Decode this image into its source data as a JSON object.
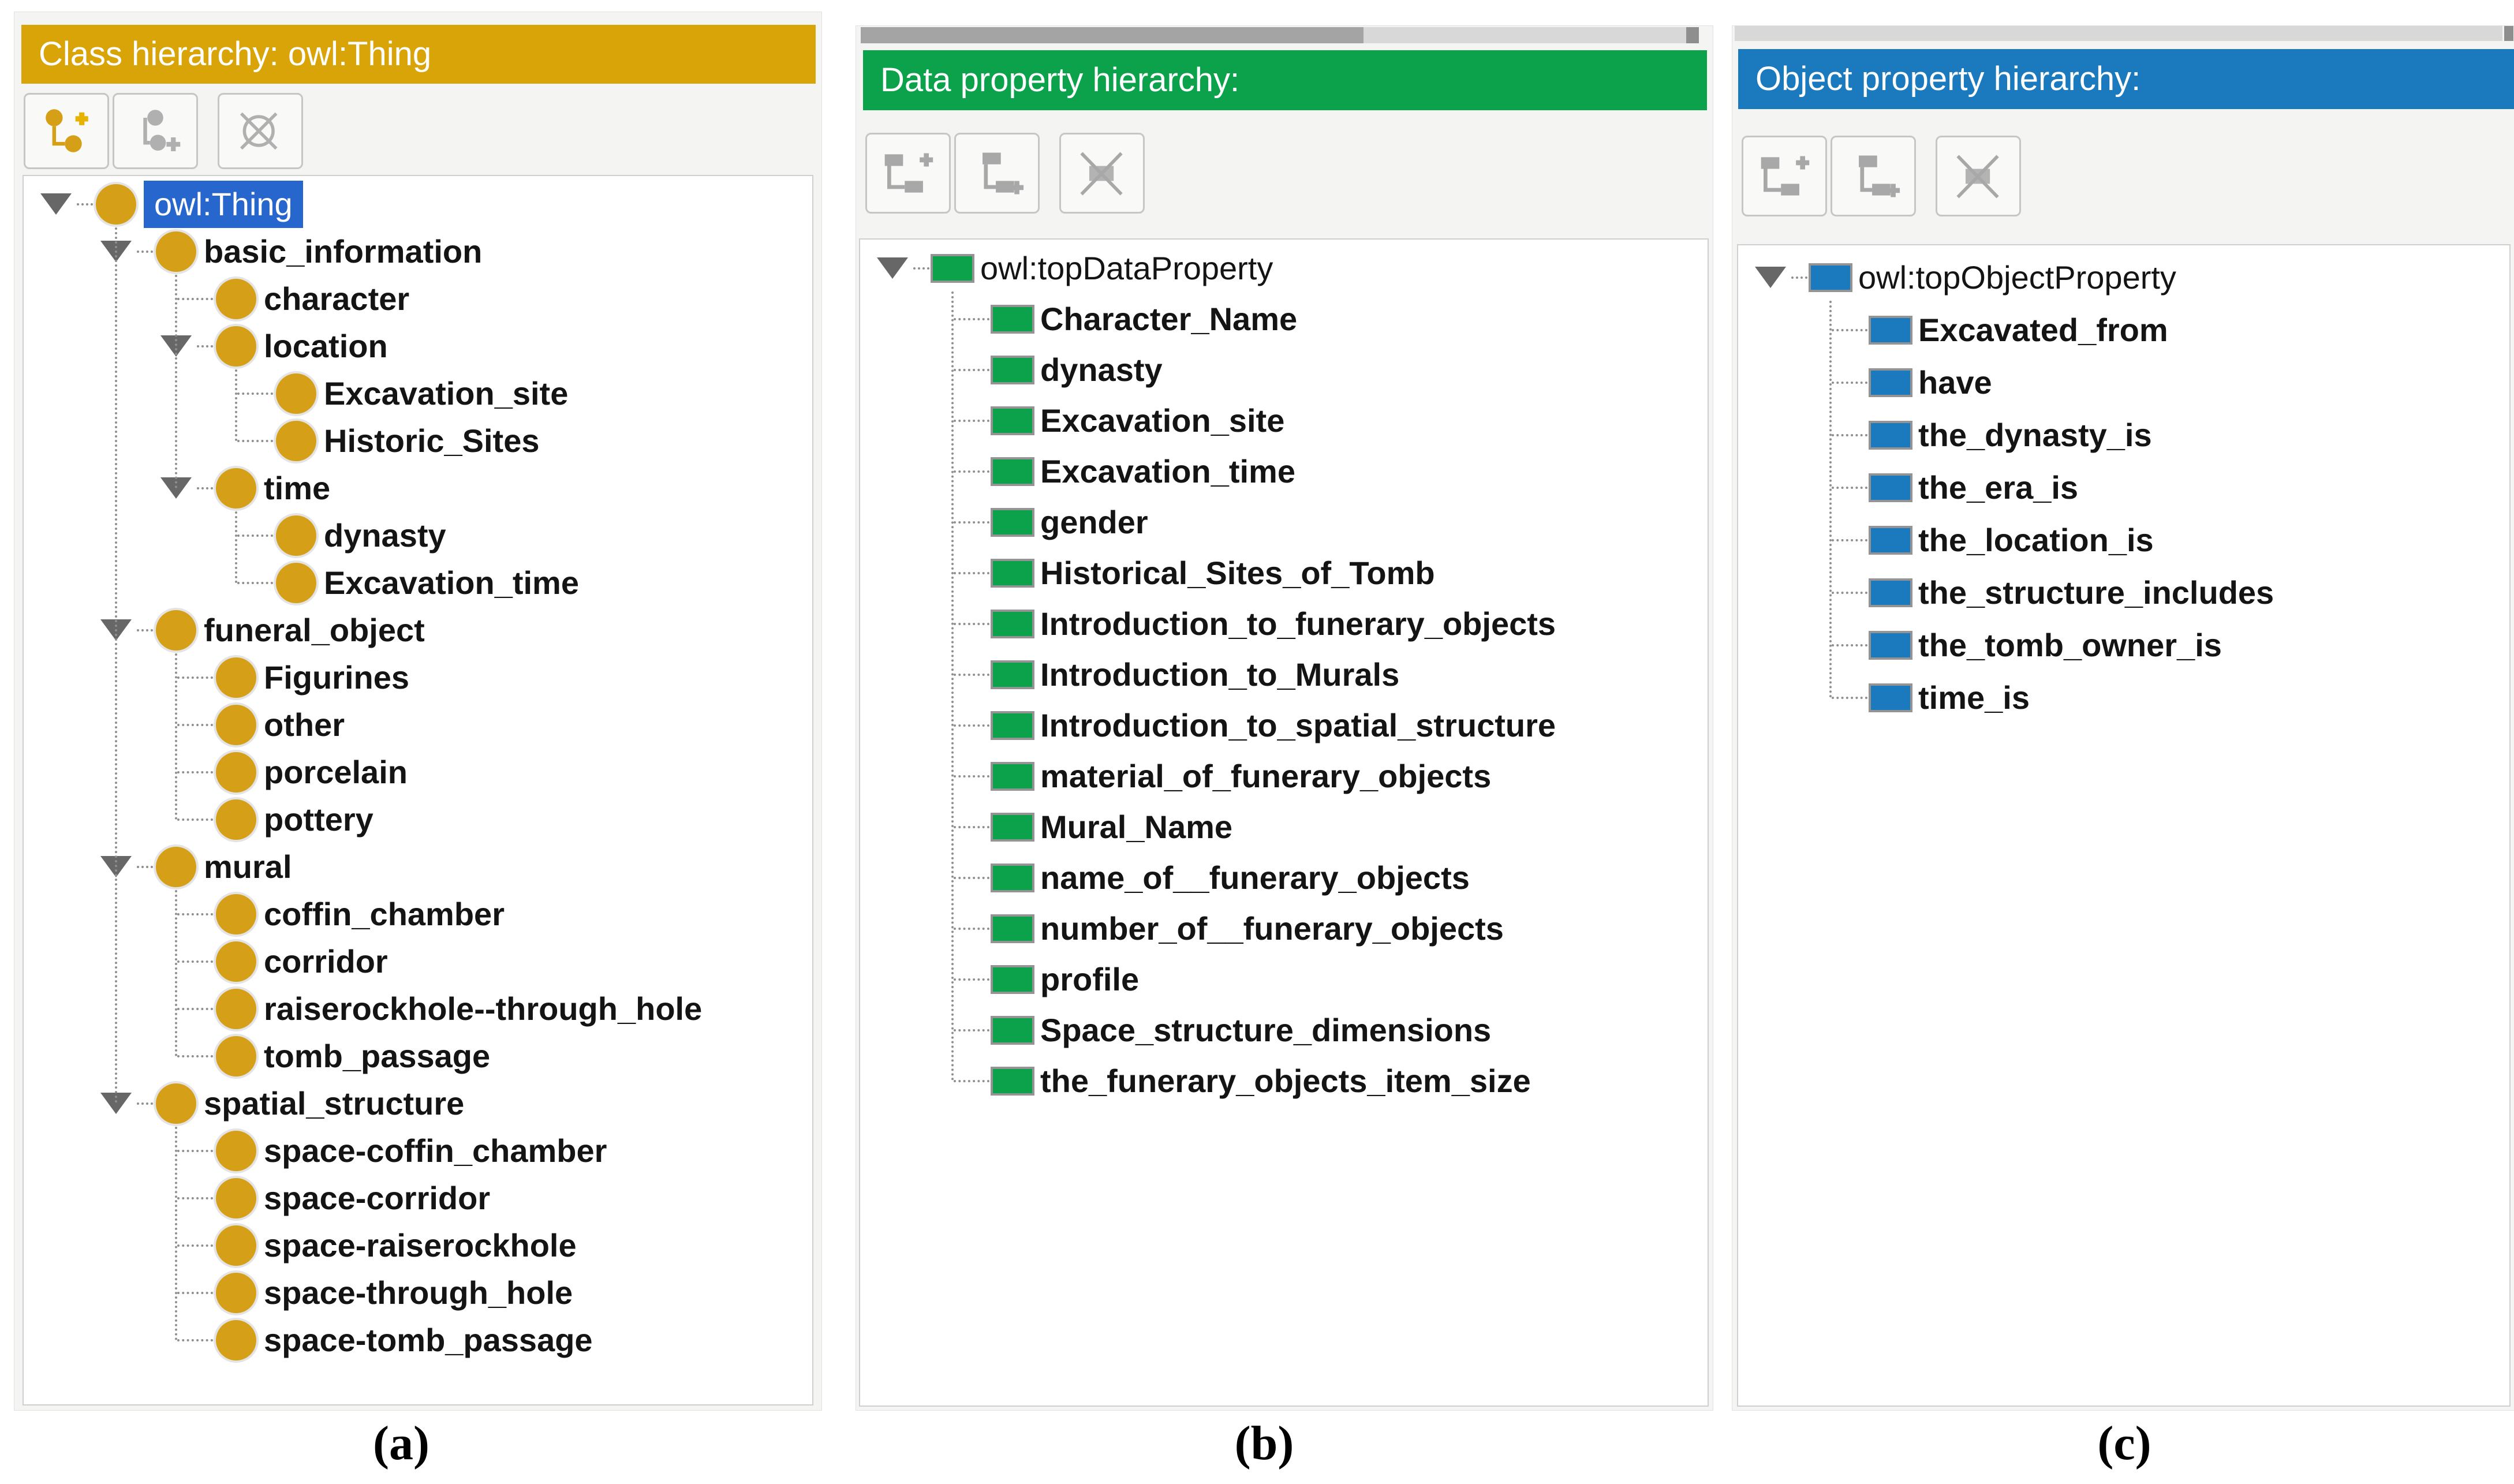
{
  "captions": {
    "a": "(a)",
    "b": "(b)",
    "c": "(c)"
  },
  "colors": {
    "selection": "#2766CC",
    "guide": "#8f8f8f",
    "class_header": "#D9A408",
    "data_header": "#0CA24C",
    "object_header": "#1B79BD",
    "class_icon": "#D5A017",
    "data_icon": "#0CA24C",
    "object_icon": "#1B79BD"
  },
  "panels": [
    {
      "id": "class-hierarchy",
      "title": "Class hierarchy: owl:Thing",
      "header_color": "#D9A408",
      "icon_color": "#D5A017",
      "toolbar": [
        {
          "icon": "add-subclass-icon"
        },
        {
          "icon": "add-sibling-class-icon"
        },
        {
          "icon": "delete-class-icon"
        }
      ],
      "tree": [
        {
          "label": "owl:Thing",
          "depth": 0,
          "expanded": true,
          "selected": true
        },
        {
          "label": "basic_information",
          "depth": 1,
          "expanded": true
        },
        {
          "label": "character",
          "depth": 2
        },
        {
          "label": "location",
          "depth": 2,
          "expanded": true
        },
        {
          "label": "Excavation_site",
          "depth": 3
        },
        {
          "label": "Historic_Sites",
          "depth": 3
        },
        {
          "label": "time",
          "depth": 2,
          "expanded": true
        },
        {
          "label": "dynasty",
          "depth": 3
        },
        {
          "label": "Excavation_time",
          "depth": 3
        },
        {
          "label": "funeral_object",
          "depth": 1,
          "expanded": true
        },
        {
          "label": "Figurines",
          "depth": 2
        },
        {
          "label": "other",
          "depth": 2
        },
        {
          "label": "porcelain",
          "depth": 2
        },
        {
          "label": "pottery",
          "depth": 2
        },
        {
          "label": "mural",
          "depth": 1,
          "expanded": true
        },
        {
          "label": "coffin_chamber",
          "depth": 2
        },
        {
          "label": "corridor",
          "depth": 2
        },
        {
          "label": "raiserockhole--through_hole",
          "depth": 2
        },
        {
          "label": "tomb_passage",
          "depth": 2
        },
        {
          "label": "spatial_structure",
          "depth": 1,
          "expanded": true
        },
        {
          "label": "space-coffin_chamber",
          "depth": 2
        },
        {
          "label": "space-corridor",
          "depth": 2
        },
        {
          "label": "space-raiserockhole",
          "depth": 2
        },
        {
          "label": "space-through_hole",
          "depth": 2
        },
        {
          "label": "space-tomb_passage",
          "depth": 2
        }
      ]
    },
    {
      "id": "data-property-hierarchy",
      "title": "Data property hierarchy:",
      "header_color": "#0CA24C",
      "icon_color": "#0CA24C",
      "toolbar": [
        {
          "icon": "add-sub-property-icon"
        },
        {
          "icon": "add-sibling-property-icon"
        },
        {
          "icon": "delete-property-icon"
        }
      ],
      "tree": [
        {
          "label": "owl:topDataProperty",
          "depth": 0,
          "expanded": true
        },
        {
          "label": "Character_Name",
          "depth": 1
        },
        {
          "label": "dynasty",
          "depth": 1
        },
        {
          "label": "Excavation_site",
          "depth": 1
        },
        {
          "label": "Excavation_time",
          "depth": 1
        },
        {
          "label": "gender",
          "depth": 1
        },
        {
          "label": "Historical_Sites_of_Tomb",
          "depth": 1
        },
        {
          "label": "Introduction_to_funerary_objects",
          "depth": 1
        },
        {
          "label": "Introduction_to_Murals",
          "depth": 1
        },
        {
          "label": "Introduction_to_spatial_structure",
          "depth": 1
        },
        {
          "label": "material_of_funerary_objects",
          "depth": 1
        },
        {
          "label": "Mural_Name",
          "depth": 1
        },
        {
          "label": "name_of__funerary_objects",
          "depth": 1
        },
        {
          "label": "number_of__funerary_objects",
          "depth": 1
        },
        {
          "label": "profile",
          "depth": 1
        },
        {
          "label": "Space_structure_dimensions",
          "depth": 1
        },
        {
          "label": "the_funerary_objects_item_size",
          "depth": 1
        }
      ]
    },
    {
      "id": "object-property-hierarchy",
      "title": "Object property hierarchy:",
      "header_color": "#1B79BD",
      "icon_color": "#1B79BD",
      "toolbar": [
        {
          "icon": "add-sub-property-icon"
        },
        {
          "icon": "add-sibling-property-icon"
        },
        {
          "icon": "delete-property-icon"
        }
      ],
      "tree": [
        {
          "label": "owl:topObjectProperty",
          "depth": 0,
          "expanded": true
        },
        {
          "label": "Excavated_from",
          "depth": 1
        },
        {
          "label": "have",
          "depth": 1
        },
        {
          "label": "the_dynasty_is",
          "depth": 1
        },
        {
          "label": "the_era_is",
          "depth": 1
        },
        {
          "label": "the_location_is",
          "depth": 1
        },
        {
          "label": "the_structure_includes",
          "depth": 1
        },
        {
          "label": "the_tomb_owner_is",
          "depth": 1
        },
        {
          "label": "time_is",
          "depth": 1
        }
      ]
    }
  ]
}
